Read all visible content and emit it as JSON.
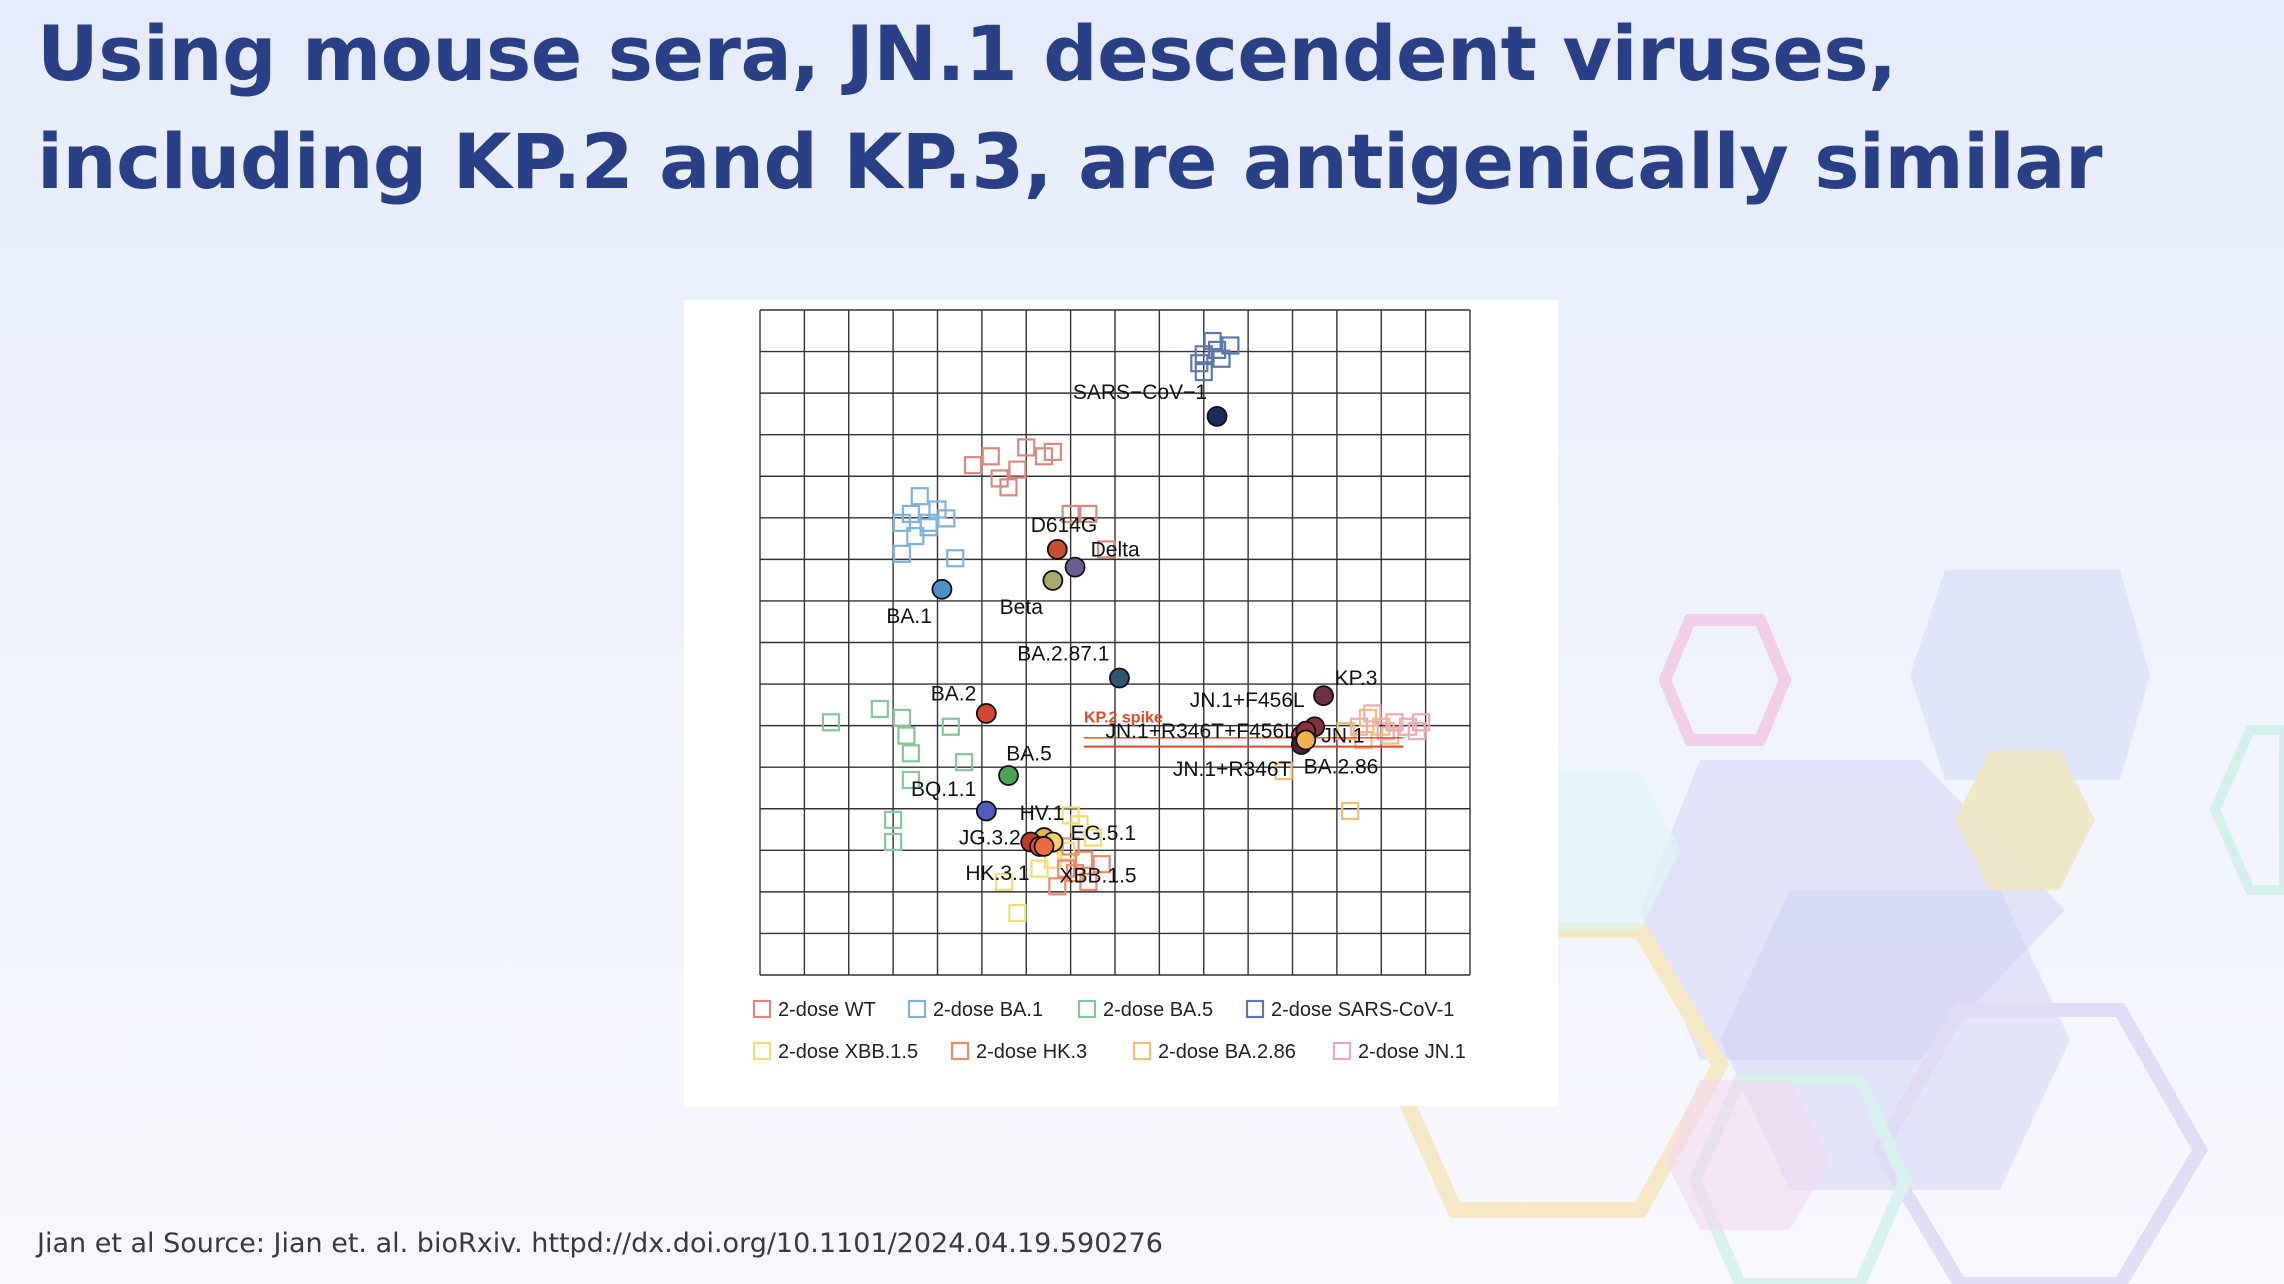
{
  "slide": {
    "title": "Using mouse sera, JN.1 descendent viruses, including KP.2 and KP.3, are antigenically similar",
    "source": "Jian et al Source: Jian et. al. bioRxiv. httpd://dx.doi.org/10.1101/2024.04.19.590276"
  },
  "chart_data": {
    "type": "scatter",
    "title": "",
    "xlabel": "",
    "ylabel": "",
    "grid": true,
    "grid_cells": 16,
    "xlim": [
      0,
      16
    ],
    "ylim": [
      0,
      15
    ],
    "legend_position": "bottom",
    "sera_groups": [
      {
        "name": "2-dose WT",
        "color": "#d98a80",
        "points": [
          [
            4.8,
            11.5
          ],
          [
            5.2,
            11.7
          ],
          [
            5.4,
            11.2
          ],
          [
            5.8,
            11.4
          ],
          [
            6.0,
            11.9
          ],
          [
            6.4,
            11.7
          ],
          [
            6.6,
            11.8
          ],
          [
            5.6,
            11.0
          ],
          [
            7.4,
            10.4
          ],
          [
            7.0,
            10.4
          ],
          [
            7.8,
            9.6
          ]
        ]
      },
      {
        "name": "2-dose BA.1",
        "color": "#7fb2dc",
        "points": [
          [
            3.6,
            10.8
          ],
          [
            3.4,
            10.4
          ],
          [
            3.8,
            10.2
          ],
          [
            4.0,
            10.5
          ],
          [
            4.2,
            10.3
          ],
          [
            3.2,
            10.2
          ],
          [
            3.5,
            9.9
          ],
          [
            3.2,
            9.5
          ],
          [
            4.4,
            9.4
          ],
          [
            3.8,
            10.1
          ]
        ]
      },
      {
        "name": "2-dose BA.5",
        "color": "#86c79a",
        "points": [
          [
            1.6,
            5.7
          ],
          [
            2.7,
            6.0
          ],
          [
            3.2,
            5.8
          ],
          [
            3.3,
            5.4
          ],
          [
            3.4,
            5.0
          ],
          [
            4.3,
            5.6
          ],
          [
            4.6,
            4.8
          ],
          [
            3.4,
            4.4
          ],
          [
            3.0,
            3.5
          ],
          [
            3.0,
            3.0
          ]
        ]
      },
      {
        "name": "2-dose SARS-CoV-1",
        "color": "#5c78ac",
        "points": [
          [
            10.0,
            14.0
          ],
          [
            10.3,
            14.1
          ],
          [
            10.6,
            14.2
          ],
          [
            10.2,
            14.3
          ],
          [
            9.9,
            13.8
          ],
          [
            10.4,
            13.9
          ],
          [
            10.0,
            13.6
          ]
        ]
      },
      {
        "name": "2-dose XBB.1.5",
        "color": "#f1dc79",
        "points": [
          [
            5.5,
            2.1
          ],
          [
            5.8,
            1.4
          ],
          [
            6.3,
            2.4
          ],
          [
            6.9,
            2.8
          ],
          [
            7.2,
            3.4
          ],
          [
            7.5,
            3.1
          ],
          [
            6.6,
            2.6
          ],
          [
            7.0,
            3.6
          ]
        ]
      },
      {
        "name": "2-dose HK.3",
        "color": "#ea8c6b",
        "points": [
          [
            6.7,
            2.0
          ],
          [
            7.1,
            2.3
          ],
          [
            7.4,
            2.1
          ],
          [
            7.7,
            2.5
          ],
          [
            7.0,
            2.9
          ],
          [
            7.3,
            2.6
          ],
          [
            6.9,
            2.4
          ]
        ]
      },
      {
        "name": "2-dose BA.2.86",
        "color": "#f5bd78",
        "points": [
          [
            11.8,
            4.6
          ],
          [
            13.3,
            3.7
          ],
          [
            13.7,
            5.8
          ],
          [
            14.2,
            5.4
          ],
          [
            13.6,
            5.3
          ],
          [
            14.0,
            5.6
          ],
          [
            13.2,
            5.5
          ]
        ]
      },
      {
        "name": "2-dose JN.1",
        "color": "#efaab6",
        "points": [
          [
            13.8,
            5.9
          ],
          [
            14.3,
            5.7
          ],
          [
            14.6,
            5.6
          ],
          [
            14.8,
            5.5
          ],
          [
            13.5,
            5.6
          ],
          [
            14.1,
            5.5
          ],
          [
            14.9,
            5.7
          ]
        ]
      }
    ],
    "virus_series": [
      {
        "name": "SARS−CoV−1",
        "color": "#1b2a5c",
        "x": 10.3,
        "y": 12.6,
        "label_dx": -1,
        "label_dy": 0.55
      },
      {
        "name": "D614G",
        "color": "#c64c35",
        "x": 6.7,
        "y": 9.6,
        "label_dx": -0.6,
        "label_dy": 0.55
      },
      {
        "name": "Delta",
        "color": "#6c5e94",
        "x": 7.1,
        "y": 9.2,
        "label_dx": 0.35,
        "label_dy": 0.4
      },
      {
        "name": "Beta",
        "color": "#a7ab6d",
        "x": 6.6,
        "y": 8.9,
        "label_dx": -1,
        "label_dy": -0.6
      },
      {
        "name": "BA.1",
        "color": "#4d8fc7",
        "x": 4.1,
        "y": 8.7,
        "label_dx": -1,
        "label_dy": -0.6
      },
      {
        "name": "BA.2.87.1",
        "color": "#2f5675",
        "x": 8.1,
        "y": 6.7,
        "label_dx": -1,
        "label_dy": 0.55
      },
      {
        "name": "KP.3",
        "color": "#6f2e45",
        "x": 12.7,
        "y": 6.3,
        "label_dx": 0.25,
        "label_dy": 0.4
      },
      {
        "name": "JN.1+F456L",
        "color": "#7f2f3e",
        "x": 12.5,
        "y": 5.6,
        "label_dx": -1,
        "label_dy": 0.6
      },
      {
        "name": "JN.1",
        "color": "#d1443d",
        "x": 12.2,
        "y": 5.4,
        "label_dx": 0.45,
        "label_dy": 0
      },
      {
        "name": "JN.1+R346T+F456L",
        "color": "#8a3040",
        "x": 12.3,
        "y": 5.5,
        "label_dx": -1,
        "label_dy": 0
      },
      {
        "name": "JN.1+R346T",
        "color": "#512237",
        "x": 12.2,
        "y": 5.2,
        "label_dx": -1,
        "label_dy": -0.55
      },
      {
        "name": "BA.2.86",
        "color": "#f2b24f",
        "x": 12.3,
        "y": 5.3,
        "label_dx": -0.05,
        "label_dy": -0.6
      },
      {
        "name": "BA.2",
        "color": "#d64436",
        "x": 5.1,
        "y": 5.9,
        "label_dx": -1,
        "label_dy": 0.45
      },
      {
        "name": "BA.5",
        "color": "#4ea356",
        "x": 5.6,
        "y": 4.5,
        "label_dx": -0.05,
        "label_dy": 0.5
      },
      {
        "name": "BQ.1.1",
        "color": "#4f5cb8",
        "x": 5.1,
        "y": 3.7,
        "label_dx": -1,
        "label_dy": 0.5
      },
      {
        "name": "HV.1",
        "color": "#e8b547",
        "x": 6.4,
        "y": 3.1,
        "label_dx": -0.55,
        "label_dy": 0.55
      },
      {
        "name": "EG.5.1",
        "color": "#f3d268",
        "x": 6.6,
        "y": 3.0,
        "label_dx": 0.4,
        "label_dy": 0.2
      },
      {
        "name": "JG.3.2",
        "color": "#c0392b",
        "x": 6.1,
        "y": 3.0,
        "label_dx": -1,
        "label_dy": 0.1
      },
      {
        "name": "HK.3.1",
        "color": "#e2503c",
        "x": 6.3,
        "y": 2.9,
        "label_dx": -1,
        "label_dy": -0.6
      },
      {
        "name": "XBB.1.5",
        "color": "#ee6a3f",
        "x": 6.4,
        "y": 2.9,
        "label_dx": 0.35,
        "label_dy": -0.65
      }
    ],
    "annotation": {
      "text": "KP.2 spike",
      "color": "#e0492b",
      "x": 7.3,
      "y": 5.7
    }
  }
}
